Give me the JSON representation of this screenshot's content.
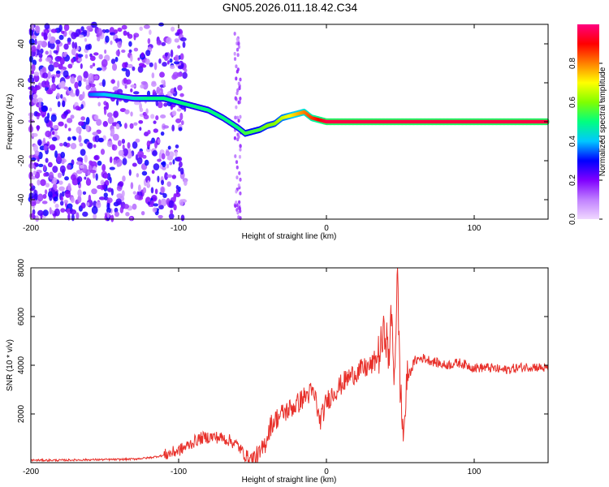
{
  "figure": {
    "title": "GN05.2026.011.18.42.C34"
  },
  "chart_data": [
    {
      "type": "heatmap",
      "xlabel": "Height of straight line (km)",
      "ylabel": "Frequency (Hz)",
      "xlim": [
        -200,
        150
      ],
      "ylim": [
        -50,
        50
      ],
      "xticks": [
        -200,
        -100,
        0,
        100
      ],
      "yticks": [
        -40,
        -20,
        0,
        20,
        40
      ],
      "colorbar": {
        "label": "Normalized spectral amplitude",
        "range": [
          0,
          1
        ],
        "ticks": [
          0.0,
          0.2,
          0.4,
          0.6,
          0.8
        ],
        "colors": [
          "#f0d8ff",
          "#c080ff",
          "#8000ff",
          "#0000ff",
          "#00c8ff",
          "#00ff80",
          "#80ff00",
          "#ffff00",
          "#ff8000",
          "#ff0000",
          "#ff0080"
        ]
      },
      "trace": {
        "x": [
          -160,
          -150,
          -140,
          -130,
          -120,
          -110,
          -100,
          -90,
          -80,
          -70,
          -60,
          -55,
          -50,
          -45,
          -40,
          -35,
          -30,
          -25,
          -20,
          -15,
          -10,
          -5,
          0,
          20,
          40,
          60,
          80,
          100,
          120,
          150
        ],
        "frequency": [
          14,
          14,
          13,
          12,
          12,
          12,
          10,
          8,
          6,
          2,
          -3,
          -6,
          -5,
          -4,
          -2,
          -1,
          2,
          3,
          4,
          5,
          2,
          1,
          0,
          0,
          0,
          0,
          0,
          0,
          0,
          0
        ],
        "amplitude": [
          0.35,
          0.4,
          0.45,
          0.45,
          0.5,
          0.5,
          0.5,
          0.5,
          0.5,
          0.5,
          0.5,
          0.55,
          0.55,
          0.55,
          0.6,
          0.6,
          0.65,
          0.7,
          0.75,
          0.8,
          0.85,
          0.9,
          0.95,
          0.95,
          0.95,
          0.95,
          0.95,
          0.95,
          0.95,
          0.95
        ]
      }
    },
    {
      "type": "line",
      "xlabel": "Height of straight line (km)",
      "ylabel": "SNR (10 * v/v)",
      "xlim": [
        -200,
        150
      ],
      "ylim": [
        0,
        8000
      ],
      "xticks": [
        -200,
        -100,
        0,
        100
      ],
      "yticks": [
        2000,
        4000,
        6000,
        8000
      ],
      "series": [
        {
          "color": "#e8302a",
          "x": [
            -200,
            -180,
            -160,
            -140,
            -130,
            -120,
            -110,
            -100,
            -95,
            -90,
            -85,
            -80,
            -75,
            -70,
            -65,
            -60,
            -55,
            -50,
            -45,
            -42,
            -40,
            -38,
            -35,
            -30,
            -25,
            -20,
            -15,
            -10,
            -7,
            -5,
            -3,
            0,
            5,
            10,
            15,
            20,
            25,
            30,
            33,
            36,
            38,
            40,
            42,
            44,
            46,
            48,
            50,
            52,
            55,
            60,
            65,
            70,
            80,
            90,
            100,
            110,
            120,
            130,
            140,
            150
          ],
          "y": [
            100,
            100,
            120,
            130,
            150,
            200,
            300,
            500,
            650,
            850,
            1000,
            1050,
            1050,
            1000,
            900,
            700,
            300,
            150,
            300,
            700,
            1100,
            1500,
            1750,
            2000,
            2200,
            2400,
            2700,
            2900,
            2600,
            1700,
            1900,
            2500,
            2900,
            3200,
            3500,
            3700,
            3850,
            3950,
            4200,
            4500,
            5000,
            5500,
            4200,
            6000,
            3500,
            7800,
            3000,
            1100,
            3500,
            4200,
            4300,
            4200,
            4000,
            4100,
            3900,
            3900,
            3800,
            3900,
            3950,
            3850
          ]
        }
      ]
    }
  ]
}
